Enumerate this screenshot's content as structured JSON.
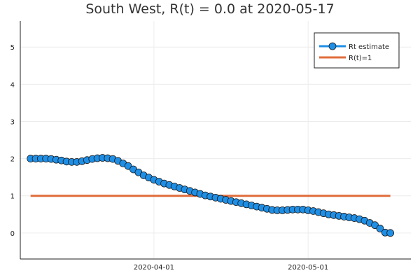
{
  "chart_data": {
    "type": "line",
    "title": "South West, R(t) = 0.0 at 2020-05-17",
    "xlabel": "",
    "ylabel": "",
    "x_axis_type": "date",
    "xlim": [
      "2020-03-06",
      "2020-05-21"
    ],
    "ylim": [
      -0.7,
      5.7
    ],
    "x_ticks": [
      "2020-04-01",
      "2020-05-01"
    ],
    "y_ticks": [
      0,
      1,
      2,
      3,
      4,
      5
    ],
    "grid": true,
    "legend_position": "top-right",
    "series": [
      {
        "name": "Rt estimate",
        "color": "#1f8fe6",
        "marker": "circle",
        "x": [
          "2020-03-08",
          "2020-03-09",
          "2020-03-10",
          "2020-03-11",
          "2020-03-12",
          "2020-03-13",
          "2020-03-14",
          "2020-03-15",
          "2020-03-16",
          "2020-03-17",
          "2020-03-18",
          "2020-03-19",
          "2020-03-20",
          "2020-03-21",
          "2020-03-22",
          "2020-03-23",
          "2020-03-24",
          "2020-03-25",
          "2020-03-26",
          "2020-03-27",
          "2020-03-28",
          "2020-03-29",
          "2020-03-30",
          "2020-03-31",
          "2020-04-01",
          "2020-04-02",
          "2020-04-03",
          "2020-04-04",
          "2020-04-05",
          "2020-04-06",
          "2020-04-07",
          "2020-04-08",
          "2020-04-09",
          "2020-04-10",
          "2020-04-11",
          "2020-04-12",
          "2020-04-13",
          "2020-04-14",
          "2020-04-15",
          "2020-04-16",
          "2020-04-17",
          "2020-04-18",
          "2020-04-19",
          "2020-04-20",
          "2020-04-21",
          "2020-04-22",
          "2020-04-23",
          "2020-04-24",
          "2020-04-25",
          "2020-04-26",
          "2020-04-27",
          "2020-04-28",
          "2020-04-29",
          "2020-04-30",
          "2020-05-01",
          "2020-05-02",
          "2020-05-03",
          "2020-05-04",
          "2020-05-05",
          "2020-05-06",
          "2020-05-07",
          "2020-05-08",
          "2020-05-09",
          "2020-05-10",
          "2020-05-11",
          "2020-05-12",
          "2020-05-13",
          "2020-05-14",
          "2020-05-15",
          "2020-05-16",
          "2020-05-17"
        ],
        "values": [
          2.0,
          2.0,
          2.0,
          2.0,
          1.99,
          1.97,
          1.95,
          1.92,
          1.91,
          1.91,
          1.93,
          1.96,
          1.99,
          2.01,
          2.02,
          2.01,
          1.99,
          1.94,
          1.87,
          1.8,
          1.71,
          1.63,
          1.55,
          1.49,
          1.43,
          1.38,
          1.33,
          1.29,
          1.25,
          1.21,
          1.17,
          1.13,
          1.09,
          1.05,
          1.01,
          0.98,
          0.95,
          0.92,
          0.89,
          0.86,
          0.83,
          0.8,
          0.77,
          0.74,
          0.71,
          0.68,
          0.65,
          0.62,
          0.61,
          0.61,
          0.62,
          0.63,
          0.63,
          0.63,
          0.61,
          0.59,
          0.56,
          0.53,
          0.5,
          0.48,
          0.46,
          0.44,
          0.42,
          0.4,
          0.37,
          0.33,
          0.27,
          0.21,
          0.12,
          0.01,
          0.0
        ]
      },
      {
        "name": "R(t)=1",
        "color": "#e06c3c",
        "marker": "none",
        "x": [
          "2020-03-08",
          "2020-05-17"
        ],
        "values": [
          1,
          1
        ]
      }
    ]
  }
}
